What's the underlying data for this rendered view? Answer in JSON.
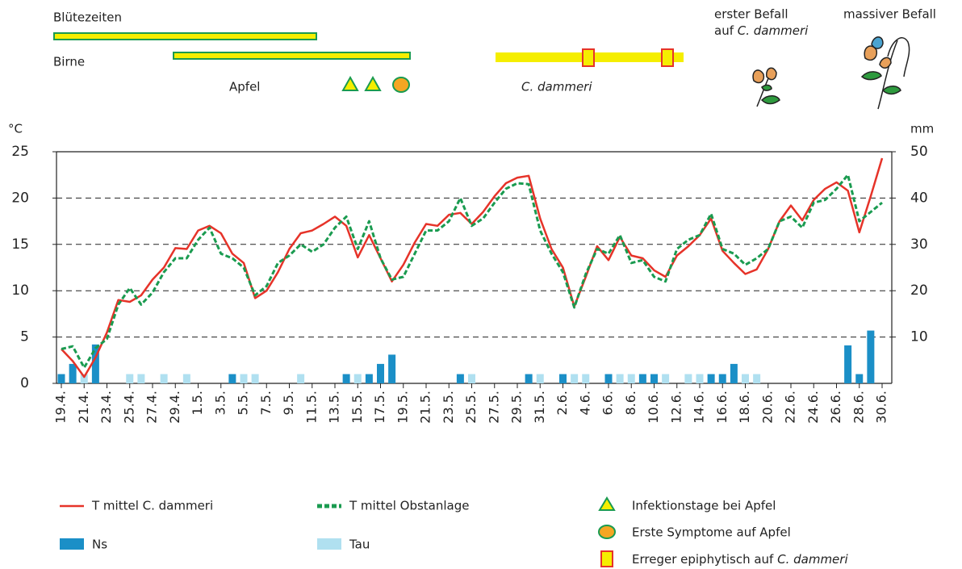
{
  "chart_data": {
    "type": "line",
    "y_label": "°C",
    "y2_label": "mm",
    "categories": [
      "19.4.",
      null,
      "21.4.",
      null,
      "23.4.",
      null,
      "25.4.",
      null,
      "27.4.",
      null,
      "29.4.",
      null,
      "1.5.",
      null,
      "3.5.",
      null,
      "5.5.",
      null,
      "7.5.",
      null,
      "9.5.",
      null,
      "11.5.",
      null,
      "13.5.",
      null,
      "15.5.",
      null,
      "17.5.",
      null,
      "19.5.",
      null,
      "21.5.",
      null,
      "23.5.",
      null,
      "25.5.",
      null,
      "27.5.",
      null,
      "29.5.",
      null,
      "31.5.",
      null,
      "2.6.",
      null,
      "4.6.",
      null,
      "6.6.",
      null,
      "8.6.",
      null,
      "10.6.",
      null,
      "12.6.",
      null,
      "14.6.",
      null,
      "16.6.",
      null,
      "18.6.",
      null,
      "20.6.",
      null,
      "22.6.",
      null,
      "24.6.",
      null,
      "26.6.",
      null,
      "28.6.",
      null,
      "30.6."
    ],
    "ylim": [
      0,
      25
    ],
    "yticks": [
      0,
      5,
      10,
      15,
      20,
      25
    ],
    "y2lim": [
      0,
      50
    ],
    "y2ticks": [
      10,
      20,
      30,
      40,
      50
    ],
    "grid": true,
    "series": [
      {
        "name": "T mittel C. dammeri",
        "type": "line",
        "color": "#e63329",
        "dashed": false,
        "values": [
          3.7,
          2.4,
          0.7,
          2.8,
          5.5,
          9,
          8.8,
          9.5,
          11.2,
          12.5,
          14.6,
          14.5,
          16.5,
          17,
          16.2,
          14,
          13,
          9.2,
          10,
          12,
          14.5,
          16.2,
          16.5,
          17.2,
          18,
          17,
          13.6,
          16,
          13.5,
          11,
          12.8,
          15.2,
          17.2,
          17,
          18.2,
          18.4,
          17.2,
          18.5,
          20.2,
          21.6,
          22.2,
          22.4,
          17.8,
          14.5,
          12.5,
          8.3,
          11.5,
          14.8,
          13.3,
          15.8,
          13.8,
          13.5,
          12.2,
          11.5,
          13.8,
          14.8,
          16,
          17.8,
          14.3,
          13,
          11.8,
          12.3,
          14.5,
          17.5,
          19.2,
          17.6,
          19.8,
          21,
          21.7,
          20.8,
          16.3,
          20.2,
          24.3
        ]
      },
      {
        "name": "T mittel Obstanlage",
        "type": "line",
        "color": "#1a9b50",
        "dashed": true,
        "values": [
          3.7,
          4,
          1.7,
          3.8,
          4.8,
          8.5,
          10.3,
          8.5,
          9.8,
          12,
          13.5,
          13.5,
          15.5,
          16.8,
          14,
          13.5,
          12.5,
          9.5,
          10.5,
          13,
          13.8,
          15,
          14.2,
          15,
          16.8,
          18,
          14.5,
          17.5,
          13.5,
          11.2,
          11.5,
          14,
          16.5,
          16.5,
          17.5,
          20,
          17,
          17.8,
          19.5,
          21,
          21.6,
          21.5,
          16.5,
          14,
          12,
          8.2,
          11.8,
          14.5,
          14,
          16,
          13,
          13.3,
          11.5,
          11,
          14.5,
          15.5,
          16,
          18.3,
          14.5,
          14,
          12.8,
          13.5,
          14.5,
          17.5,
          18,
          16.8,
          19.5,
          19.8,
          21,
          22.5,
          17.5,
          18.5,
          19.5
        ]
      },
      {
        "name": "Ns",
        "type": "bar",
        "axis": "y2",
        "color": "#1b8fc7",
        "values": [
          2,
          4.2,
          null,
          8.4,
          null,
          null,
          null,
          null,
          null,
          null,
          null,
          null,
          null,
          null,
          null,
          2,
          null,
          null,
          null,
          null,
          null,
          null,
          null,
          null,
          null,
          2,
          null,
          2,
          4.2,
          6.2,
          null,
          null,
          null,
          null,
          null,
          2,
          null,
          null,
          null,
          null,
          null,
          2,
          null,
          null,
          2,
          null,
          null,
          null,
          2,
          null,
          null,
          2,
          2,
          null,
          null,
          null,
          null,
          2,
          2,
          4.2,
          null,
          null,
          null,
          null,
          null,
          null,
          null,
          null,
          null,
          8.2,
          2,
          11.4,
          null
        ]
      },
      {
        "name": "Tau",
        "type": "bar",
        "axis": "y2",
        "color": "#b0e0f0",
        "values": [
          null,
          null,
          2,
          null,
          null,
          null,
          2,
          2,
          null,
          2,
          null,
          2,
          null,
          null,
          null,
          null,
          2,
          2,
          null,
          null,
          null,
          2,
          null,
          null,
          null,
          null,
          2,
          null,
          null,
          null,
          null,
          null,
          null,
          null,
          null,
          null,
          2,
          null,
          null,
          null,
          null,
          null,
          2,
          null,
          null,
          2,
          2,
          null,
          null,
          2,
          2,
          null,
          null,
          2,
          null,
          2,
          2,
          null,
          null,
          null,
          2,
          2,
          null,
          null,
          null,
          null,
          null,
          null,
          null,
          null,
          null,
          null,
          null
        ]
      }
    ],
    "annotations": {
      "bluetezeiten": "Blütezeiten",
      "birne": "Birne",
      "apfel": "Apfel",
      "species": "C. dammeri",
      "erster_befall": "erster Befall",
      "auf": "auf",
      "massiver_befall": "massiver Befall"
    },
    "symbol_legend": [
      "Infektionstage bei Apfel",
      "Erste Symptome auf Apfel",
      "Erreger epiphytisch auf"
    ]
  }
}
